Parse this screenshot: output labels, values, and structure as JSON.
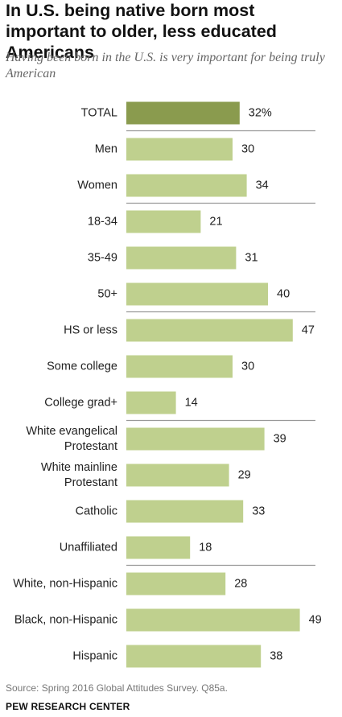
{
  "header": {
    "title": "In U.S. being native born most important to older, less educated Americans",
    "subtitle": "Having been born in the U.S. is very important for being truly American"
  },
  "chart_data": {
    "type": "bar",
    "orientation": "horizontal",
    "categories": [
      "TOTAL",
      "Men",
      "Women",
      "18-34",
      "35-49",
      "50+",
      "HS or less",
      "Some college",
      "College grad+",
      "White evangelical Protestant",
      "White mainline Protestant",
      "Catholic",
      "Unaffiliated",
      "White, non-Hispanic",
      "Black, non-Hispanic",
      "Hispanic"
    ],
    "category_lines": [
      [
        "TOTAL"
      ],
      [
        "Men"
      ],
      [
        "Women"
      ],
      [
        "18-34"
      ],
      [
        "35-49"
      ],
      [
        "50+"
      ],
      [
        "HS or less"
      ],
      [
        "Some college"
      ],
      [
        "College grad+"
      ],
      [
        "White evangelical",
        "Protestant"
      ],
      [
        "White mainline",
        "Protestant"
      ],
      [
        "Catholic"
      ],
      [
        "Unaffiliated"
      ],
      [
        "White, non-Hispanic"
      ],
      [
        "Black, non-Hispanic"
      ],
      [
        "Hispanic"
      ]
    ],
    "values": [
      32,
      30,
      34,
      21,
      31,
      40,
      47,
      30,
      14,
      39,
      29,
      33,
      18,
      28,
      49,
      38
    ],
    "value_labels": [
      "32%",
      "30",
      "34",
      "21",
      "31",
      "40",
      "47",
      "30",
      "14",
      "39",
      "29",
      "33",
      "18",
      "28",
      "49",
      "38"
    ],
    "groups": [
      [
        0
      ],
      [
        1,
        2
      ],
      [
        3,
        4,
        5
      ],
      [
        6,
        7,
        8
      ],
      [
        9,
        10,
        11,
        12
      ],
      [
        13,
        14,
        15
      ]
    ],
    "xlim": [
      0,
      60
    ],
    "colors": {
      "highlight": "#8a9b4e",
      "bar": "#bfd08e",
      "separator": "#999999"
    },
    "legend": "none",
    "grid": false
  },
  "footer": {
    "source": "Source: Spring 2016 Global Attitudes Survey. Q85a.",
    "brand": "PEW RESEARCH CENTER"
  }
}
